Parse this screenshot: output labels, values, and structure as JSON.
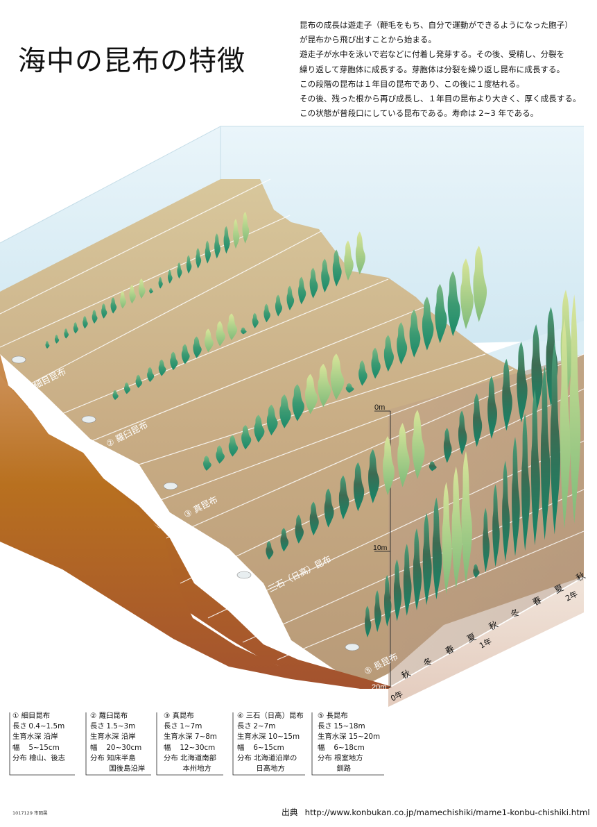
{
  "title": "海中の昆布の特徴",
  "intro_lines": [
    "昆布の成長は遊走子（鞭毛をもち、自分で運動ができるようになった胞子）",
    "が昆布から飛び出すことから始まる。",
    "遊走子が水中を泳いで岩などに付着し発芽する。その後、受精し、分裂を",
    "繰り返して芽胞体に成長する。芽胞体は分裂を繰り返し昆布に成長する。",
    "この段階の昆布は１年目の昆布であり、この後に１度枯れる。",
    "その後、残った根から再び成長し、１年目の昆布より大きく、厚く成長する。",
    "この状態が普段口にしている昆布である。寿命は 2~3 年である。"
  ],
  "diagram": {
    "species_labels": [
      "① 細目昆布",
      "② 羅臼昆布",
      "③ 真昆布",
      "④ 三石（日高）昆布",
      "⑤ 長昆布"
    ],
    "depth_labels": [
      "0m",
      "10m",
      "20m"
    ],
    "season_labels": [
      "秋",
      "冬",
      "春",
      "夏",
      "秋",
      "冬",
      "春",
      "夏",
      "秋"
    ],
    "year_labels": [
      "0年",
      "1年",
      "2年"
    ],
    "colors": {
      "water": "#daeef6",
      "sand": "#cdb98f",
      "cliff": "#b0642a",
      "kelp_dark": "#17836a",
      "kelp_mid": "#4fa878",
      "kelp_light": "#c6dc86",
      "time_axis": "#ecd9cf"
    }
  },
  "legend": [
    {
      "name": "① 細目昆布",
      "rows": [
        {
          "k": "長さ",
          "v": "0.4~1.5m"
        },
        {
          "k": "生育水深",
          "v": "沿岸"
        },
        {
          "k": "幅",
          "v": "5~15cm"
        },
        {
          "k": "分布",
          "v": "檜山、後志"
        }
      ]
    },
    {
      "name": "② 羅臼昆布",
      "rows": [
        {
          "k": "長さ",
          "v": "1.5~3m"
        },
        {
          "k": "生育水深",
          "v": "沿岸"
        },
        {
          "k": "幅",
          "v": "20~30cm"
        },
        {
          "k": "分布",
          "v": "知床半島"
        },
        {
          "k": "",
          "v": "国後島沿岸"
        }
      ]
    },
    {
      "name": "③ 真昆布",
      "rows": [
        {
          "k": "長さ",
          "v": "1~7m"
        },
        {
          "k": "生育水深",
          "v": "7~8m"
        },
        {
          "k": "幅",
          "v": "12~30cm"
        },
        {
          "k": "分布",
          "v": "北海道南部"
        },
        {
          "k": "",
          "v": "本州地方"
        }
      ]
    },
    {
      "name": "④ 三石（日高）昆布",
      "rows": [
        {
          "k": "長さ",
          "v": "2~7m"
        },
        {
          "k": "生育水深",
          "v": "10~15m"
        },
        {
          "k": "幅",
          "v": "6~15cm"
        },
        {
          "k": "分布",
          "v": "北海道沿岸の"
        },
        {
          "k": "",
          "v": "日高地方"
        }
      ]
    },
    {
      "name": "⑤ 長昆布",
      "rows": [
        {
          "k": "長さ",
          "v": "15~18m"
        },
        {
          "k": "生育水深",
          "v": "15~20m"
        },
        {
          "k": "幅",
          "v": "6~18cm"
        },
        {
          "k": "分布",
          "v": "根室地方"
        },
        {
          "k": "",
          "v": "釧路"
        }
      ]
    }
  ],
  "credit": "1017129 市岡晃",
  "source": {
    "label": "出典",
    "url": "http://www.konbukan.co.jp/mamechishiki/mame1-konbu-chishiki.html"
  }
}
